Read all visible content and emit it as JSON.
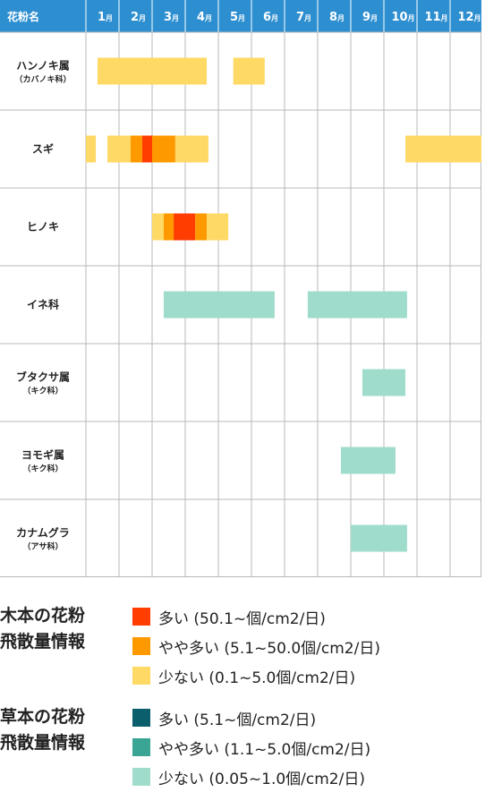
{
  "colors": {
    "header_bg": "#2E8FD0",
    "grid": "#b8b8b8",
    "tree_high": "#FF3D00",
    "tree_mid": "#FF9900",
    "tree_low": "#FFD966",
    "grass_high": "#0B5E6B",
    "grass_mid": "#3AA595",
    "grass_low": "#9FDCCB"
  },
  "chart_data": {
    "type": "heatmap",
    "header": {
      "label": "花粉名",
      "months": [
        "1",
        "2",
        "3",
        "4",
        "5",
        "6",
        "7",
        "8",
        "9",
        "10",
        "11",
        "12"
      ],
      "month_suffix": "月"
    },
    "x_unit": "month (bar positions in fractional months, 0 = start of January)",
    "rows": [
      {
        "name": "ハンノキ属",
        "sub": "（カバノキ科）",
        "group": "tree",
        "segments": [
          {
            "start": 0.35,
            "end": 3.65,
            "level": "low"
          },
          {
            "start": 4.45,
            "end": 5.4,
            "level": "low"
          }
        ]
      },
      {
        "name": "スギ",
        "sub": "",
        "group": "tree",
        "segments": [
          {
            "start": 0.0,
            "end": 0.3,
            "level": "low"
          },
          {
            "start": 0.65,
            "end": 1.35,
            "level": "low"
          },
          {
            "start": 1.35,
            "end": 1.7,
            "level": "mid"
          },
          {
            "start": 1.7,
            "end": 2.0,
            "level": "high"
          },
          {
            "start": 2.0,
            "end": 2.7,
            "level": "mid"
          },
          {
            "start": 2.7,
            "end": 3.7,
            "level": "low"
          },
          {
            "start": 9.65,
            "end": 12.0,
            "level": "low"
          }
        ]
      },
      {
        "name": "ヒノキ",
        "sub": "",
        "group": "tree",
        "segments": [
          {
            "start": 2.0,
            "end": 2.35,
            "level": "low"
          },
          {
            "start": 2.35,
            "end": 2.65,
            "level": "mid"
          },
          {
            "start": 2.65,
            "end": 3.3,
            "level": "high"
          },
          {
            "start": 3.3,
            "end": 3.65,
            "level": "mid"
          },
          {
            "start": 3.65,
            "end": 4.3,
            "level": "low"
          }
        ]
      },
      {
        "name": "イネ科",
        "sub": "",
        "group": "grass",
        "segments": [
          {
            "start": 2.35,
            "end": 5.7,
            "level": "low"
          },
          {
            "start": 6.7,
            "end": 9.7,
            "level": "low"
          }
        ]
      },
      {
        "name": "ブタクサ属",
        "sub": "（キク科）",
        "group": "grass",
        "segments": [
          {
            "start": 8.35,
            "end": 9.65,
            "level": "low"
          }
        ]
      },
      {
        "name": "ヨモギ属",
        "sub": "（キク科）",
        "group": "grass",
        "segments": [
          {
            "start": 7.7,
            "end": 9.35,
            "level": "low"
          }
        ]
      },
      {
        "name": "カナムグラ",
        "sub": "（アサ科）",
        "group": "grass",
        "segments": [
          {
            "start": 8.0,
            "end": 9.7,
            "level": "low"
          }
        ]
      }
    ]
  },
  "legend": [
    {
      "title_line1": "木本の花粉",
      "title_line2": "飛散量情報",
      "items": [
        {
          "color_key": "tree_high",
          "text": "多い (50.1~個/cm2/日)"
        },
        {
          "color_key": "tree_mid",
          "text": "やや多い (5.1~50.0個/cm2/日)"
        },
        {
          "color_key": "tree_low",
          "text": "少ない (0.1~5.0個/cm2/日)"
        }
      ]
    },
    {
      "title_line1": "草本の花粉",
      "title_line2": "飛散量情報",
      "items": [
        {
          "color_key": "grass_high",
          "text": "多い (5.1~個/cm2/日)"
        },
        {
          "color_key": "grass_mid",
          "text": "やや多い (1.1~5.0個/cm2/日)"
        },
        {
          "color_key": "grass_low",
          "text": "少ない (0.05~1.0個/cm2/日)"
        }
      ]
    }
  ]
}
